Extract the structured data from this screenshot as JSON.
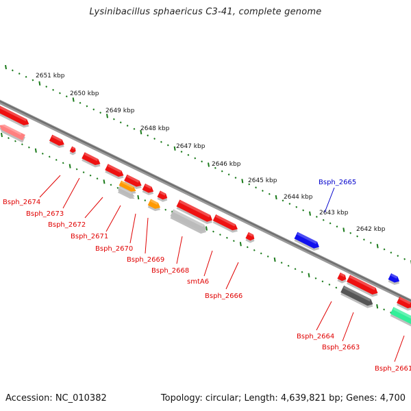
{
  "title": "Lysinibacillus sphaericus C3-41, complete genome",
  "accession": "Accession: NC_010382",
  "topology": "Topology: circular; Length: 4,639,821 bp; Genes: 4,700",
  "ruler_labels": [
    "2651 kbp",
    "2650 kbp",
    "2649 kbp",
    "2648 kbp",
    "2647 kbp",
    "2646 kbp",
    "2645 kbp",
    "2644 kbp",
    "2643 kbp",
    "2642 kbp"
  ],
  "genes": [
    {
      "name": "Bsph_2674",
      "color": "#e00000"
    },
    {
      "name": "Bsph_2673",
      "color": "#e00000"
    },
    {
      "name": "Bsph_2672",
      "color": "#e00000"
    },
    {
      "name": "Bsph_2671",
      "color": "#e00000"
    },
    {
      "name": "Bsph_2670",
      "color": "#e00000"
    },
    {
      "name": "Bsph_2669",
      "color": "#e00000"
    },
    {
      "name": "Bsph_2668",
      "color": "#e00000"
    },
    {
      "name": "smtA6",
      "color": "#e00000"
    },
    {
      "name": "Bsph_2666",
      "color": "#e00000"
    },
    {
      "name": "Bsph_2665",
      "color": "#0000cc"
    },
    {
      "name": "Bsph_2664",
      "color": "#e00000"
    },
    {
      "name": "Bsph_2663",
      "color": "#e00000"
    },
    {
      "name": "Bsph_2661",
      "color": "#e00000"
    }
  ],
  "colors": {
    "backbone": "#808080",
    "tick": "#1a7a1a",
    "gene_red": "#ee1111",
    "gene_blue": "#1111ee",
    "gene_orange": "#ff9900",
    "gene_grey": "#bbbbbb",
    "gene_dark": "#555555",
    "gene_green": "#33ee99",
    "gene_pink": "#ff8080"
  }
}
